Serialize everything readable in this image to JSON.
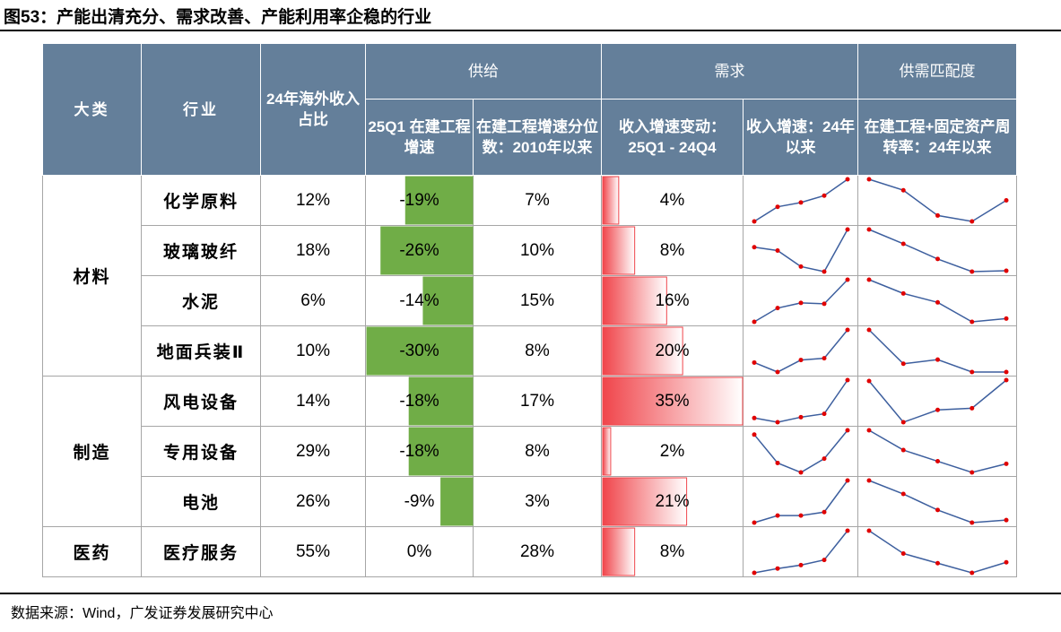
{
  "header": {
    "title": "图53：产能出清充分、需求改善、产能利用率企稳的行业"
  },
  "table": {
    "columns": {
      "category": "大类",
      "industry": "行业",
      "overseas": "24年海外收入占比",
      "supply": "供给",
      "supply_growth": "25Q1 在建工程增速",
      "supply_pct": "在建工程增速分位数：2010年以来",
      "demand": "需求",
      "demand_change": "收入增速变动：25Q1 - 24Q4",
      "demand_trend": "收入增速：24年以来",
      "match": "供需匹配度",
      "match_trend": "在建工程+固定资产周转率：24年以来"
    },
    "groups": [
      {
        "name": "材料",
        "rows": [
          {
            "industry": "化学原料",
            "overseas": "12%",
            "supply_growth": {
              "value": -19,
              "label": "-19%"
            },
            "supply_pct": "7%",
            "demand_change": {
              "value": 4,
              "label": "4%"
            },
            "demand_trend": [
              3,
              20,
              25,
              33,
              52
            ],
            "match_trend": [
              53,
              40,
              10,
              3,
              28
            ]
          },
          {
            "industry": "玻璃玻纤",
            "overseas": "18%",
            "supply_growth": {
              "value": -26,
              "label": "-26%"
            },
            "supply_pct": "10%",
            "demand_change": {
              "value": 8,
              "label": "8%"
            },
            "demand_trend": [
              31,
              27,
              8,
              2,
              52
            ],
            "match_trend": [
              53,
              36,
              18,
              3,
              4
            ]
          },
          {
            "industry": "水泥",
            "overseas": "6%",
            "supply_growth": {
              "value": -14,
              "label": "-14%"
            },
            "supply_pct": "15%",
            "demand_change": {
              "value": 16,
              "label": "16%"
            },
            "demand_trend": [
              2,
              18,
              24,
              23,
              51
            ],
            "match_trend": [
              54,
              37,
              26,
              2,
              6
            ]
          },
          {
            "industry": "地面兵装Ⅱ",
            "overseas": "10%",
            "supply_growth": {
              "value": -30,
              "label": "-30%"
            },
            "supply_pct": "8%",
            "demand_change": {
              "value": 20,
              "label": "20%"
            },
            "demand_trend": [
              15,
              4,
              18,
              20,
              53
            ],
            "match_trend": [
              55,
              14,
              19,
              4,
              4
            ]
          }
        ]
      },
      {
        "name": "制造",
        "rows": [
          {
            "industry": "风电设备",
            "overseas": "14%",
            "supply_growth": {
              "value": -18,
              "label": "-18%"
            },
            "supply_pct": "17%",
            "demand_change": {
              "value": 35,
              "label": "35%"
            },
            "demand_trend": [
              7,
              2,
              8,
              12,
              52
            ],
            "match_trend": [
              50,
              3,
              17,
              19,
              51
            ]
          },
          {
            "industry": "专用设备",
            "overseas": "29%",
            "supply_growth": {
              "value": -18,
              "label": "-18%"
            },
            "supply_pct": "8%",
            "demand_change": {
              "value": 2,
              "label": "2%"
            },
            "demand_trend": [
              47,
              14,
              3,
              19,
              52
            ],
            "match_trend": [
              52,
              29,
              16,
              3,
              13
            ]
          },
          {
            "industry": "电池",
            "overseas": "26%",
            "supply_growth": {
              "value": -9,
              "label": "-9%"
            },
            "supply_pct": "3%",
            "demand_change": {
              "value": 21,
              "label": "21%"
            },
            "demand_trend": [
              2,
              10,
              10,
              14,
              50
            ],
            "match_trend": [
              52,
              36,
              17,
              2,
              5
            ]
          }
        ]
      },
      {
        "name": "医药",
        "rows": [
          {
            "industry": "医疗服务",
            "overseas": "55%",
            "supply_growth": {
              "value": 0,
              "label": "0%"
            },
            "supply_pct": "28%",
            "demand_change": {
              "value": 8,
              "label": "8%"
            },
            "demand_trend": [
              2,
              7,
              11,
              17,
              51
            ],
            "match_trend": [
              51,
              25,
              14,
              3,
              15
            ]
          }
        ]
      }
    ]
  },
  "footer": {
    "source": "数据来源：Wind，广发证券发展研究中心"
  }
}
